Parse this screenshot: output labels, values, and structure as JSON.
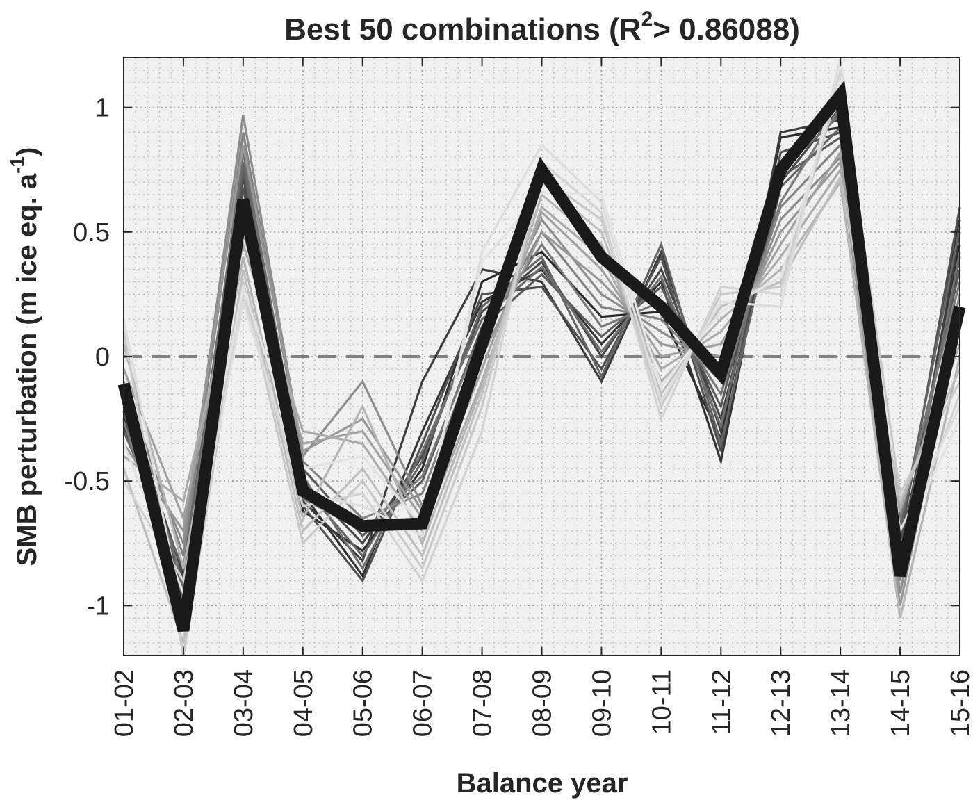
{
  "chart_data": {
    "type": "line",
    "title": {
      "prefix": "Best 50 combinations (R",
      "superscript": "2",
      "suffix": "> 0.86088)"
    },
    "xlabel": "Balance year",
    "ylabel": {
      "main": "SMB perturbation (m ice eq. a",
      "superscript": "-1",
      "end": ")"
    },
    "categories": [
      "01-02",
      "02-03",
      "03-04",
      "04-05",
      "05-06",
      "06-07",
      "07-08",
      "08-09",
      "09-10",
      "10-11",
      "11-12",
      "12-13",
      "13-14",
      "14-15",
      "15-16"
    ],
    "yticks": [
      {
        "value": 1,
        "label": "1"
      },
      {
        "value": 0.5,
        "label": "0.5"
      },
      {
        "value": 0,
        "label": "0"
      },
      {
        "value": -0.5,
        "label": "-0.5"
      },
      {
        "value": -1,
        "label": "-1"
      }
    ],
    "ylim": [
      -1.2,
      1.2
    ],
    "grid": "on",
    "minor_grid": "on",
    "zero_line": {
      "value": 0,
      "style": "dashed",
      "color": "#808080"
    },
    "highlight_series": {
      "color": "#1a1a1a",
      "values": [
        -0.11,
        -1.1,
        0.63,
        -0.54,
        -0.68,
        -0.67,
        0.05,
        0.75,
        0.4,
        0.2,
        -0.07,
        0.75,
        1.05,
        -0.88,
        0.2
      ]
    },
    "ensemble_series": [
      {
        "color": "#2b2b2b",
        "values": [
          -0.25,
          -0.95,
          0.58,
          -0.62,
          -0.78,
          -0.45,
          0.3,
          0.42,
          0.16,
          0.18,
          -0.33,
          0.88,
          0.92,
          -0.8,
          0.45
        ]
      },
      {
        "color": "#333333",
        "values": [
          -0.2,
          -1.0,
          0.62,
          -0.55,
          -0.88,
          -0.3,
          0.22,
          0.35,
          0.05,
          0.3,
          -0.42,
          0.78,
          0.98,
          -0.72,
          0.55
        ]
      },
      {
        "color": "#3d3d3d",
        "values": [
          -0.28,
          -0.9,
          0.55,
          -0.58,
          -0.82,
          -0.1,
          0.35,
          0.3,
          -0.1,
          0.42,
          -0.3,
          0.9,
          0.95,
          -0.85,
          0.5
        ]
      },
      {
        "color": "#474747",
        "values": [
          -0.15,
          -0.88,
          0.72,
          -0.5,
          -0.75,
          -0.4,
          0.18,
          0.38,
          0.0,
          0.35,
          -0.25,
          0.7,
          1.0,
          -0.78,
          0.4
        ]
      },
      {
        "color": "#515151",
        "values": [
          -0.22,
          -1.05,
          0.68,
          -0.6,
          -0.9,
          -0.35,
          0.25,
          0.28,
          -0.05,
          0.4,
          -0.38,
          0.82,
          0.9,
          -0.75,
          0.6
        ]
      },
      {
        "color": "#5b5b5b",
        "values": [
          -0.18,
          -0.95,
          0.75,
          -0.45,
          -0.72,
          -0.5,
          0.12,
          0.33,
          0.08,
          0.28,
          -0.2,
          0.72,
          0.88,
          -0.68,
          0.35
        ]
      },
      {
        "color": "#656565",
        "values": [
          -0.3,
          -0.85,
          0.78,
          -0.52,
          -0.8,
          -0.42,
          0.2,
          0.4,
          -0.08,
          0.45,
          -0.35,
          0.68,
          0.92,
          -0.7,
          0.52
        ]
      },
      {
        "color": "#6f6f6f",
        "values": [
          -0.12,
          -0.92,
          0.82,
          -0.48,
          -0.85,
          -0.38,
          0.15,
          0.36,
          0.02,
          0.32,
          -0.28,
          0.75,
          0.97,
          -0.82,
          0.42
        ]
      },
      {
        "color": "#797979",
        "values": [
          -0.26,
          -0.98,
          0.6,
          -0.57,
          -0.7,
          -0.48,
          0.1,
          0.45,
          0.12,
          0.22,
          -0.15,
          0.62,
          1.0,
          -0.65,
          0.3
        ]
      },
      {
        "color": "#838383",
        "values": [
          -0.1,
          -0.8,
          0.9,
          -0.42,
          -0.65,
          -0.55,
          0.08,
          0.5,
          0.2,
          0.15,
          -0.1,
          0.6,
          0.85,
          -0.9,
          0.25
        ]
      },
      {
        "color": "#8d8d8d",
        "values": [
          -0.2,
          -0.75,
          0.97,
          -0.4,
          -0.1,
          -0.6,
          0.05,
          0.55,
          0.25,
          0.1,
          -0.05,
          0.55,
          0.8,
          -0.95,
          0.2
        ]
      },
      {
        "color": "#979797",
        "values": [
          -0.35,
          -0.7,
          0.85,
          -0.38,
          -0.25,
          -0.62,
          0.0,
          0.5,
          0.3,
          0.05,
          0.0,
          0.5,
          0.78,
          -1.0,
          0.15
        ]
      },
      {
        "color": "#a1a1a1",
        "values": [
          -0.05,
          -0.65,
          0.5,
          -0.35,
          -0.3,
          -0.65,
          -0.05,
          0.58,
          0.35,
          0.0,
          0.05,
          0.45,
          0.82,
          -0.62,
          0.1
        ]
      },
      {
        "color": "#ababab",
        "values": [
          -0.4,
          -0.58,
          0.45,
          -0.3,
          -0.35,
          -0.7,
          -0.1,
          0.6,
          0.4,
          -0.05,
          0.1,
          0.4,
          0.75,
          -0.6,
          0.05
        ]
      },
      {
        "color": "#b5b5b5",
        "values": [
          0.05,
          -0.85,
          0.4,
          -0.65,
          -0.2,
          -0.75,
          -0.12,
          0.65,
          0.45,
          -0.1,
          0.15,
          0.35,
          0.7,
          -1.05,
          0.0
        ]
      },
      {
        "color": "#bfbfbf",
        "values": [
          -0.45,
          -1.15,
          0.35,
          -0.7,
          -0.45,
          -0.8,
          -0.15,
          0.7,
          0.5,
          -0.15,
          0.2,
          0.3,
          0.72,
          -0.58,
          -0.05
        ]
      },
      {
        "color": "#c9c9c9",
        "values": [
          0.1,
          -1.2,
          0.3,
          -0.75,
          -0.5,
          -0.85,
          -0.2,
          0.72,
          0.55,
          -0.2,
          0.25,
          0.28,
          1.1,
          -0.55,
          -0.1
        ]
      },
      {
        "color": "#d3d3d3",
        "values": [
          -0.5,
          -0.9,
          0.25,
          -0.6,
          -0.55,
          -0.9,
          -0.3,
          0.78,
          0.58,
          -0.25,
          0.28,
          0.25,
          1.15,
          -0.8,
          -0.15
        ]
      },
      {
        "color": "#dddddd",
        "values": [
          0.15,
          -1.05,
          0.22,
          -0.55,
          -0.6,
          -0.72,
          0.42,
          0.85,
          0.62,
          -0.18,
          0.22,
          0.2,
          1.2,
          -0.7,
          -0.2
        ]
      },
      {
        "color": "#e3e3e3",
        "values": [
          -0.35,
          -0.95,
          0.28,
          -0.45,
          -0.4,
          -0.68,
          0.38,
          0.66,
          0.65,
          -0.12,
          0.18,
          0.32,
          1.12,
          -0.76,
          -0.25
        ]
      }
    ]
  }
}
